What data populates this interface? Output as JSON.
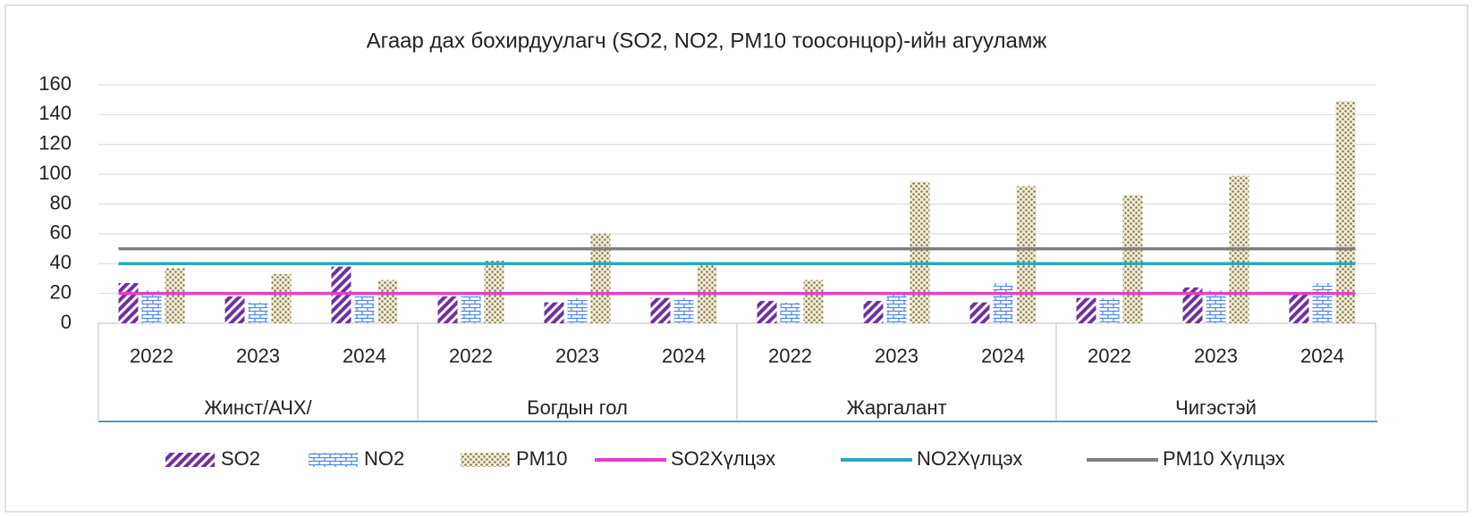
{
  "chart_data": {
    "type": "bar",
    "title": "Агаар дах бохирдуулагч (SO2, NO2, PM10 тоосонцор)-ийн агууламж",
    "groups": [
      "Жинст/АЧХ/",
      "Богдын гол",
      "Жаргалант",
      "Чигэстэй"
    ],
    "categories": [
      "2022",
      "2023",
      "2024",
      "2022",
      "2023",
      "2024",
      "2022",
      "2023",
      "2024",
      "2022",
      "2023",
      "2024"
    ],
    "series": [
      {
        "name": "SO2",
        "type": "bar",
        "pattern": "stripes",
        "color": "#7030a0",
        "values": [
          27,
          18,
          38,
          18,
          14,
          17,
          15,
          15,
          14,
          17,
          24,
          20
        ]
      },
      {
        "name": "NO2",
        "type": "bar",
        "pattern": "brick",
        "color": "#4a86e8",
        "values": [
          22,
          14,
          18,
          18,
          17,
          17,
          14,
          21,
          27,
          17,
          22,
          27
        ]
      },
      {
        "name": "PM10",
        "type": "bar",
        "pattern": "dots",
        "color": "#8a7a4c",
        "values": [
          37,
          33,
          29,
          42,
          60,
          40,
          29,
          95,
          92,
          86,
          99,
          149
        ]
      },
      {
        "name": "SO2Хүлцэх",
        "type": "line",
        "color": "#e040c8",
        "values": [
          20,
          20,
          20,
          20,
          20,
          20,
          20,
          20,
          20,
          20,
          20,
          20
        ]
      },
      {
        "name": "NO2Хүлцэх",
        "type": "line",
        "color": "#2aa8c4",
        "values": [
          40,
          40,
          40,
          40,
          40,
          40,
          40,
          40,
          40,
          40,
          40,
          40
        ]
      },
      {
        "name": "PM10 Хүлцэх",
        "type": "line",
        "color": "#808080",
        "values": [
          50,
          50,
          50,
          50,
          50,
          50,
          50,
          50,
          50,
          50,
          50,
          50
        ]
      }
    ],
    "ylim": [
      0,
      160
    ],
    "yticks": [
      0,
      20,
      40,
      60,
      80,
      100,
      120,
      140,
      160
    ],
    "grid": true,
    "legend": "bottom"
  }
}
